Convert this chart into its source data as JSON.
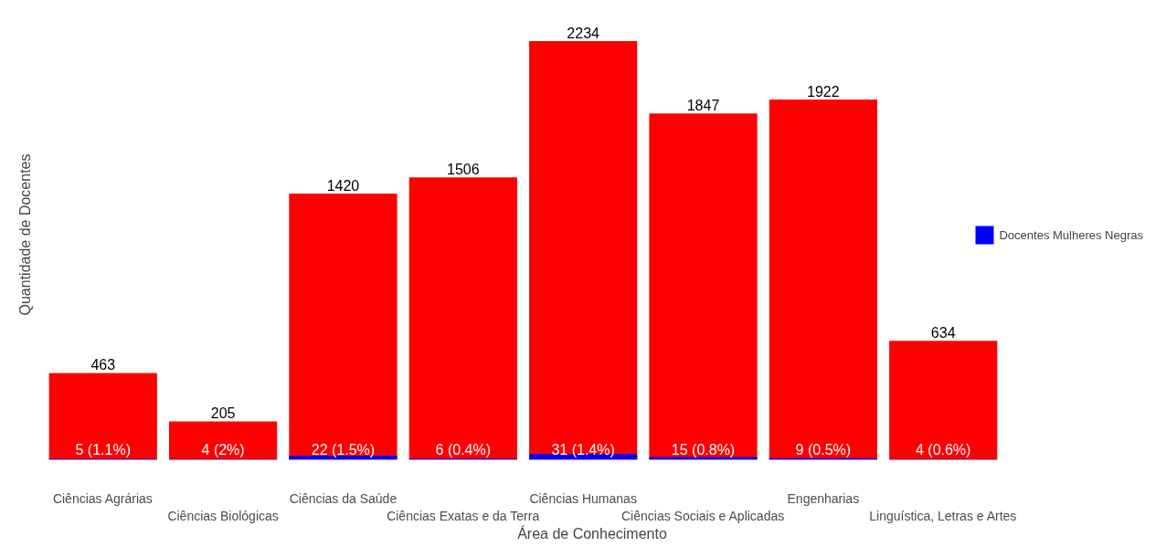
{
  "chart_data": {
    "type": "bar",
    "xlabel": "Área de Conhecimento",
    "ylabel": "Quantidade de Docentes",
    "categories": [
      "Ciências Agrárias",
      "Ciências Biológicas",
      "Ciências da Saúde",
      "Ciências Exatas e da Terra",
      "Ciências Humanas",
      "Ciências Sociais e Aplicadas",
      "Engenharias",
      "Linguística, Letras e Artes"
    ],
    "series": [
      {
        "color": "#ff0000",
        "values": [
          463,
          205,
          1420,
          1506,
          2234,
          1847,
          1922,
          634
        ],
        "value_labels": [
          "463",
          "205",
          "1420",
          "1506",
          "2234",
          "1847",
          "1922",
          "634"
        ]
      },
      {
        "name": "Docentes Mulheres Negras",
        "color": "#0000ff",
        "values": [
          5,
          4,
          22,
          6,
          31,
          15,
          9,
          4
        ],
        "value_labels": [
          "5 (1.1%)",
          "4 (2%)",
          "22 (1.5%)",
          "6 (0.4%)",
          "31 (1.4%)",
          "15 (0.8%)",
          "9 (0.5%)",
          "4 (0.6%)"
        ]
      }
    ],
    "legend": "right",
    "tick_labels": "x",
    "grid": false
  }
}
